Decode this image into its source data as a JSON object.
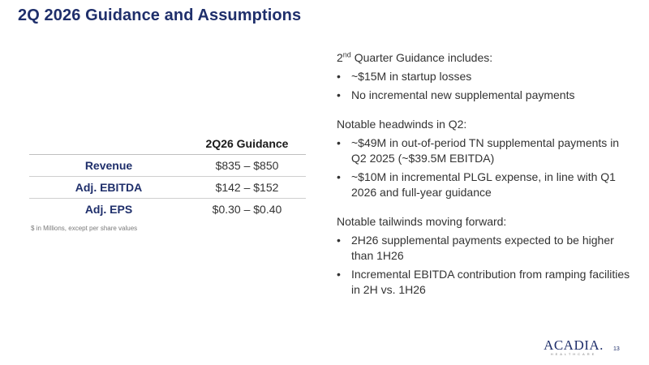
{
  "title": "2Q 2026 Guidance and Assumptions",
  "table": {
    "header": [
      "",
      "2Q26 Guidance"
    ],
    "rows": [
      {
        "label": "Revenue",
        "value": "$835 – $850"
      },
      {
        "label": "Adj. EBITDA",
        "value": "$142 – $152"
      },
      {
        "label": "Adj. EPS",
        "value": "$0.30 – $0.40"
      }
    ],
    "footnote": "$ in Millions, except per share values"
  },
  "sections": [
    {
      "heading_prefix": "2",
      "heading_sup": "nd",
      "heading_rest": " Quarter Guidance includes:",
      "bullets": [
        "~$15M in startup losses",
        "No incremental new supplemental payments"
      ]
    },
    {
      "heading": "Notable headwinds in Q2:",
      "bullets": [
        "~$49M in out-of-period TN supplemental payments in Q2 2025 (~$39.5M EBITDA)",
        "~$10M in incremental PLGL expense, in line with Q1 2026 and full-year guidance"
      ]
    },
    {
      "heading": "Notable tailwinds moving forward:",
      "bullets": [
        "2H26 supplemental payments expected to be higher than 1H26",
        "Incremental EBITDA contribution from ramping facilities in 2H vs. 1H26"
      ]
    }
  ],
  "bullet_char": "•",
  "logo": {
    "main": "ACADIA.",
    "sub": "HEALTHCARE"
  },
  "page_number": "13",
  "colors": {
    "brand_navy": "#1f2f6b",
    "text": "#333333",
    "divider": "#cfcfcf"
  }
}
